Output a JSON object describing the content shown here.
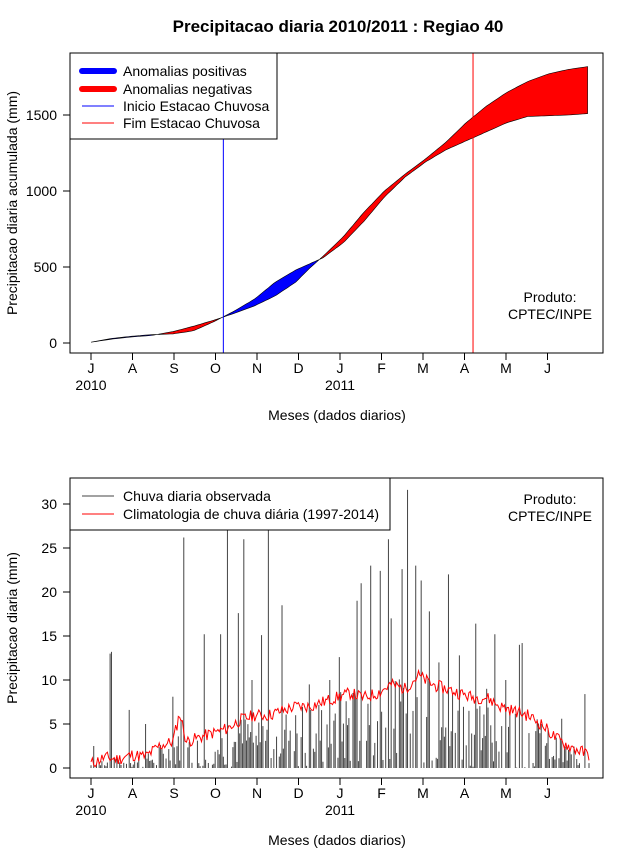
{
  "chart_data": [
    {
      "type": "area",
      "title": "Precipitacao diaria 2010/2011 : Regiao 40",
      "xlabel": "Meses (dados diarios)",
      "ylabel": "Precipitacao diaria acumulada (mm)",
      "ylim": [
        0,
        1850
      ],
      "yticks": [
        0,
        500,
        1000,
        1500
      ],
      "x_day_range": [
        0,
        365
      ],
      "month_ticks": [
        "J",
        "A",
        "S",
        "O",
        "N",
        "D",
        "J",
        "F",
        "M",
        "A",
        "M",
        "J"
      ],
      "year_labels": [
        {
          "label": "2010",
          "month_index": 0
        },
        {
          "label": "2011",
          "month_index": 6
        }
      ],
      "legend": {
        "position": "top-left",
        "entries": [
          {
            "label": "Anomalias positivas",
            "color": "#0000ff",
            "style": "thick"
          },
          {
            "label": "Anomalias negativas",
            "color": "#ff0000",
            "style": "thick"
          },
          {
            "label": "Inicio Estacao Chuvosa",
            "color": "#0000ff",
            "style": "thin"
          },
          {
            "label": "Fim Estacao Chuvosa",
            "color": "#ff0000",
            "style": "thin"
          }
        ]
      },
      "annotation": {
        "line1": "Produto:",
        "line2": "CPTEC/INPE",
        "position": "bottom-right"
      },
      "rainy_season_start_day": 97,
      "rainy_season_end_day": 280,
      "observed_cumulative": {
        "days": [
          0,
          15,
          30,
          45,
          60,
          75,
          90,
          105,
          120,
          135,
          150,
          160,
          170,
          185,
          200,
          215,
          230,
          245,
          260,
          275,
          290,
          305,
          320,
          335,
          350,
          365
        ],
        "values": [
          5,
          30,
          45,
          55,
          60,
          80,
          140,
          210,
          290,
          400,
          480,
          520,
          560,
          660,
          800,
          960,
          1090,
          1190,
          1270,
          1330,
          1390,
          1450,
          1490,
          1495,
          1500,
          1510
        ]
      },
      "climatology_cumulative": {
        "days": [
          0,
          15,
          30,
          45,
          60,
          75,
          90,
          105,
          120,
          135,
          150,
          160,
          170,
          185,
          200,
          215,
          230,
          245,
          260,
          275,
          290,
          305,
          320,
          335,
          350,
          365
        ],
        "values": [
          5,
          25,
          40,
          50,
          75,
          110,
          150,
          195,
          245,
          310,
          400,
          490,
          570,
          700,
          860,
          1000,
          1110,
          1210,
          1320,
          1450,
          1560,
          1650,
          1720,
          1770,
          1800,
          1820
        ]
      },
      "colors": {
        "positive": "#0000ff",
        "negative": "#ff0000",
        "start_line": "#0000ff",
        "end_line": "#ff0000"
      }
    },
    {
      "type": "line",
      "xlabel": "Meses (dados diarios)",
      "ylabel": "Precipitacao diaria (mm)",
      "ylim": [
        0,
        32
      ],
      "yticks": [
        0,
        5,
        10,
        15,
        20,
        25,
        30
      ],
      "x_day_range": [
        0,
        365
      ],
      "month_ticks": [
        "J",
        "A",
        "S",
        "O",
        "N",
        "D",
        "J",
        "F",
        "M",
        "A",
        "M",
        "J"
      ],
      "year_labels": [
        {
          "label": "2010",
          "month_index": 0
        },
        {
          "label": "2011",
          "month_index": 6
        }
      ],
      "legend": {
        "position": "top-left",
        "entries": [
          {
            "label": "Chuva diaria observada",
            "color": "#444444",
            "style": "thin"
          },
          {
            "label": "Climatologia de chuva diária (1997-2014)",
            "color": "#ff0000",
            "style": "thin"
          }
        ]
      },
      "annotation": {
        "line1": "Produto:",
        "line2": "CPTEC/INPE",
        "position": "top-right"
      },
      "observed_peaks": [
        {
          "day": 2,
          "value": 2.5
        },
        {
          "day": 14,
          "value": 13
        },
        {
          "day": 15,
          "value": 13.2
        },
        {
          "day": 28,
          "value": 6.6
        },
        {
          "day": 40,
          "value": 5
        },
        {
          "day": 60,
          "value": 8.1
        },
        {
          "day": 68,
          "value": 26.2
        },
        {
          "day": 83,
          "value": 15.2
        },
        {
          "day": 95,
          "value": 15.2
        },
        {
          "day": 100,
          "value": 30
        },
        {
          "day": 108,
          "value": 17.6
        },
        {
          "day": 112,
          "value": 26
        },
        {
          "day": 118,
          "value": 10
        },
        {
          "day": 125,
          "value": 15.1
        },
        {
          "day": 130,
          "value": 30
        },
        {
          "day": 140,
          "value": 18.5
        },
        {
          "day": 150,
          "value": 6
        },
        {
          "day": 160,
          "value": 9.5
        },
        {
          "day": 175,
          "value": 10
        },
        {
          "day": 182,
          "value": 12.6
        },
        {
          "day": 195,
          "value": 19
        },
        {
          "day": 198,
          "value": 21
        },
        {
          "day": 205,
          "value": 23
        },
        {
          "day": 212,
          "value": 22.4
        },
        {
          "day": 218,
          "value": 26
        },
        {
          "day": 220,
          "value": 17
        },
        {
          "day": 228,
          "value": 22.6
        },
        {
          "day": 232,
          "value": 31.6
        },
        {
          "day": 238,
          "value": 23
        },
        {
          "day": 242,
          "value": 21.3
        },
        {
          "day": 248,
          "value": 17.8
        },
        {
          "day": 255,
          "value": 12
        },
        {
          "day": 262,
          "value": 22
        },
        {
          "day": 270,
          "value": 12.8
        },
        {
          "day": 282,
          "value": 16.4
        },
        {
          "day": 290,
          "value": 9
        },
        {
          "day": 296,
          "value": 15.2
        },
        {
          "day": 304,
          "value": 10
        },
        {
          "day": 314,
          "value": 14
        },
        {
          "day": 316,
          "value": 14.2
        },
        {
          "day": 330,
          "value": 5
        },
        {
          "day": 345,
          "value": 5.6
        },
        {
          "day": 362,
          "value": 8.4
        }
      ],
      "climatology": {
        "days": [
          0,
          10,
          20,
          30,
          40,
          50,
          60,
          65,
          70,
          80,
          90,
          100,
          110,
          120,
          130,
          140,
          150,
          160,
          170,
          180,
          190,
          200,
          210,
          220,
          230,
          240,
          250,
          260,
          270,
          280,
          290,
          300,
          310,
          320,
          330,
          340,
          350,
          365
        ],
        "values": [
          0.5,
          1.2,
          1,
          1.5,
          1.3,
          2.5,
          3,
          6.2,
          3,
          3.5,
          4,
          4.5,
          5.5,
          6,
          6,
          6.5,
          7,
          7,
          7.5,
          8,
          8.5,
          8,
          8.5,
          9.5,
          9,
          10.5,
          9.5,
          9,
          8.5,
          8,
          8,
          7,
          6.5,
          6,
          5,
          3.5,
          2.5,
          1.5
        ]
      },
      "colors": {
        "observed": "#444444",
        "climatology": "#ff0000"
      }
    }
  ]
}
